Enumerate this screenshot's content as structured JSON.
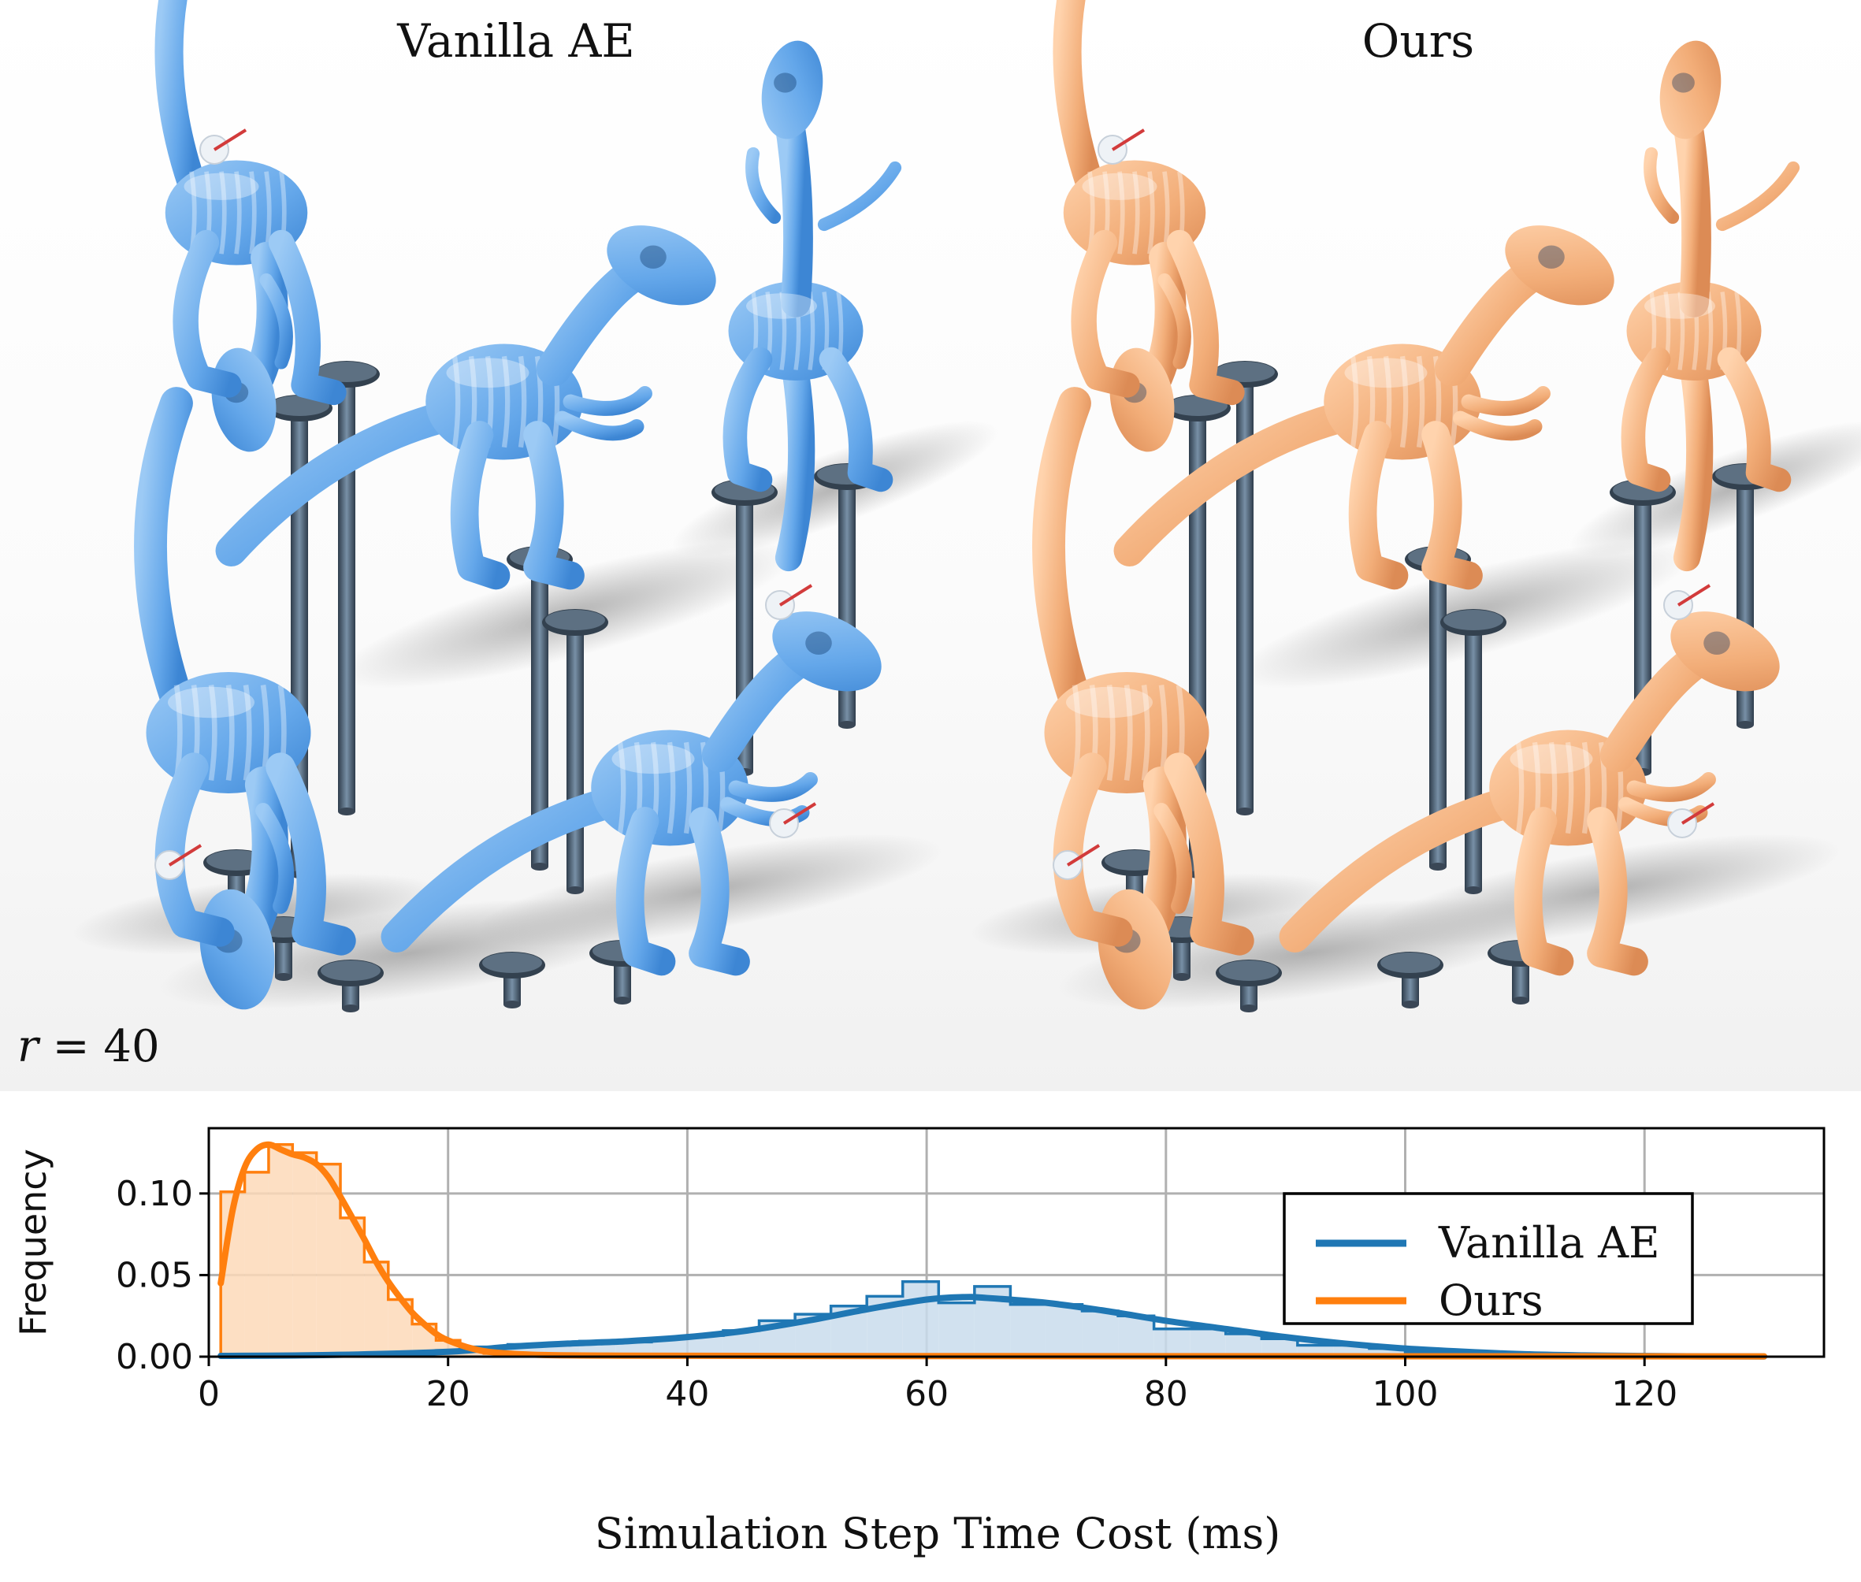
{
  "panels": {
    "left_title": "Vanilla AE",
    "right_title": "Ours",
    "r_var": "r",
    "r_value": "= 40"
  },
  "colors": {
    "vanilla_body": "#6fb0ee",
    "ours_body": "#f2b07c",
    "vanilla_line": "#1f77b4",
    "ours_line": "#ff7f0e",
    "vanilla_fill": "#c9dcec",
    "ours_fill": "#fdd9b9",
    "pole": "#4f6276"
  },
  "chart_data": {
    "type": "histogram",
    "xlabel": "Simulation Step Time Cost (ms)",
    "ylabel": "Frequency",
    "xlim": [
      0,
      135
    ],
    "ylim": [
      0,
      0.14
    ],
    "xticks": [
      0,
      20,
      40,
      60,
      80,
      100,
      120
    ],
    "yticks": [
      0.0,
      0.05,
      0.1
    ],
    "ytick_labels": [
      "0.00",
      "0.05",
      "0.10"
    ],
    "grid": true,
    "legend_position": "right",
    "series": [
      {
        "name": "Vanilla AE",
        "color": "#1f77b4",
        "bin_edges": [
          1,
          4,
          7,
          10,
          13,
          16,
          19,
          22,
          25,
          28,
          31,
          34,
          37,
          40,
          43,
          46,
          49,
          52,
          55,
          58,
          61,
          64,
          67,
          70,
          73,
          76,
          79,
          82,
          85,
          88,
          91,
          94,
          97,
          100,
          103,
          106,
          109,
          112,
          115,
          118,
          121,
          124,
          127,
          130
        ],
        "hist": [
          0.0005,
          0.0008,
          0.001,
          0.0015,
          0.002,
          0.003,
          0.004,
          0.006,
          0.0075,
          0.008,
          0.0095,
          0.009,
          0.011,
          0.013,
          0.016,
          0.022,
          0.026,
          0.031,
          0.037,
          0.046,
          0.033,
          0.043,
          0.032,
          0.032,
          0.028,
          0.025,
          0.017,
          0.017,
          0.014,
          0.011,
          0.007,
          0.007,
          0.005,
          0.003,
          0.002,
          0.0015,
          0.001,
          0.0008,
          0.0006,
          0.0004,
          0.0003,
          0.0002,
          0.0001
        ],
        "kde_x": [
          1,
          10,
          20,
          25,
          30,
          35,
          40,
          45,
          50,
          55,
          60,
          63,
          65,
          70,
          75,
          80,
          85,
          90,
          95,
          100,
          105,
          110,
          115,
          120,
          125,
          130
        ],
        "kde_y": [
          0.0005,
          0.001,
          0.003,
          0.006,
          0.008,
          0.0095,
          0.012,
          0.016,
          0.022,
          0.029,
          0.035,
          0.0365,
          0.036,
          0.033,
          0.028,
          0.022,
          0.017,
          0.012,
          0.008,
          0.005,
          0.003,
          0.0015,
          0.0008,
          0.0004,
          0.0002,
          0.0001
        ]
      },
      {
        "name": "Ours",
        "color": "#ff7f0e",
        "bin_edges": [
          1,
          3,
          5,
          7,
          9,
          11,
          13,
          15,
          17,
          19,
          21,
          23,
          25
        ],
        "hist": [
          0.101,
          0.113,
          0.13,
          0.125,
          0.118,
          0.085,
          0.058,
          0.035,
          0.02,
          0.01,
          0.005,
          0.002
        ],
        "kde_x": [
          1,
          2,
          3,
          4,
          5,
          6,
          7,
          8,
          9,
          10,
          11,
          12,
          13,
          14,
          15,
          16,
          17,
          18,
          19,
          20,
          22,
          24,
          28,
          35,
          50,
          80,
          130
        ],
        "kde_y": [
          0.045,
          0.09,
          0.116,
          0.127,
          0.13,
          0.127,
          0.124,
          0.122,
          0.118,
          0.11,
          0.098,
          0.085,
          0.072,
          0.058,
          0.046,
          0.036,
          0.027,
          0.02,
          0.014,
          0.01,
          0.005,
          0.0025,
          0.001,
          0.0006,
          0.0004,
          0.0003,
          0.0002
        ]
      }
    ]
  }
}
